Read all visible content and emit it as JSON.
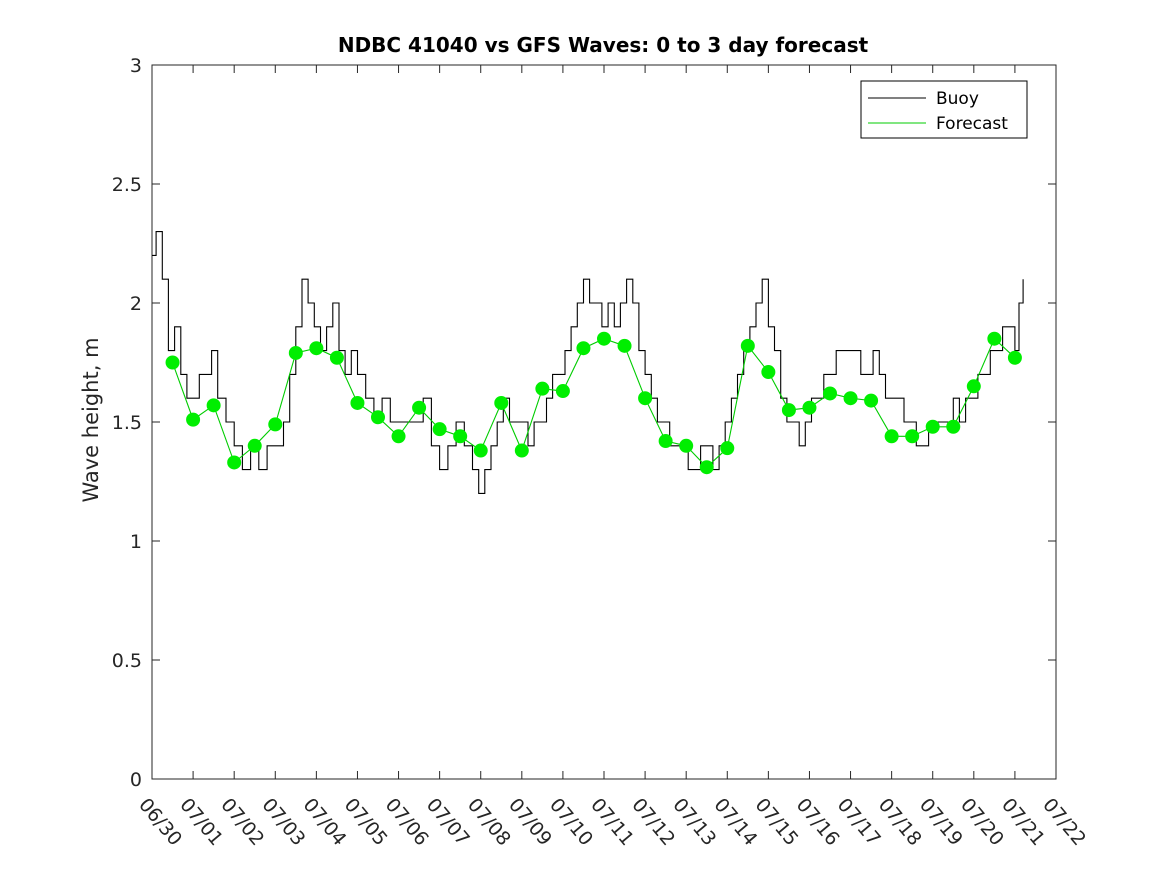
{
  "chart_data": {
    "type": "line",
    "title": "NDBC 41040 vs GFS Waves: 0 to 3 day forecast",
    "xlabel": "",
    "ylabel": "Wave height, m",
    "xlim": [
      "06/30",
      "07/22"
    ],
    "ylim": [
      0,
      3
    ],
    "x_tick_labels": [
      "06/30",
      "07/01",
      "07/02",
      "07/03",
      "07/04",
      "07/05",
      "07/06",
      "07/07",
      "07/08",
      "07/09",
      "07/10",
      "07/11",
      "07/12",
      "07/13",
      "07/14",
      "07/15",
      "07/16",
      "07/17",
      "07/18",
      "07/19",
      "07/20",
      "07/21",
      "07/22"
    ],
    "y_tick_labels": [
      "0",
      "0.5",
      "1",
      "1.5",
      "2",
      "2.5",
      "3"
    ],
    "y_ticks": [
      0,
      0.5,
      1,
      1.5,
      2,
      2.5,
      3
    ],
    "grid": false,
    "legend": {
      "placement": "top-right",
      "entries": [
        "Buoy",
        "Forecast"
      ]
    },
    "colors": {
      "buoy": "#000000",
      "forecast": "#00cc00",
      "markers": "#00ee00"
    },
    "series": [
      {
        "name": "Buoy",
        "x_days": [
          0,
          0.1,
          0.25,
          0.4,
          0.55,
          0.7,
          0.85,
          1.0,
          1.15,
          1.3,
          1.45,
          1.6,
          1.8,
          2.0,
          2.2,
          2.4,
          2.6,
          2.8,
          3.0,
          3.2,
          3.35,
          3.5,
          3.65,
          3.8,
          3.95,
          4.1,
          4.25,
          4.4,
          4.55,
          4.7,
          4.85,
          5.0,
          5.2,
          5.4,
          5.6,
          5.8,
          6.0,
          6.2,
          6.4,
          6.6,
          6.8,
          7.0,
          7.2,
          7.4,
          7.6,
          7.8,
          7.95,
          8.1,
          8.25,
          8.4,
          8.55,
          8.7,
          8.85,
          9.0,
          9.15,
          9.3,
          9.45,
          9.6,
          9.75,
          9.9,
          10.05,
          10.2,
          10.35,
          10.5,
          10.65,
          10.8,
          10.95,
          11.1,
          11.25,
          11.4,
          11.55,
          11.7,
          11.85,
          12.0,
          12.15,
          12.3,
          12.45,
          12.6,
          12.75,
          12.9,
          13.05,
          13.2,
          13.35,
          13.5,
          13.65,
          13.8,
          13.95,
          14.1,
          14.25,
          14.4,
          14.55,
          14.7,
          14.85,
          15.0,
          15.15,
          15.3,
          15.45,
          15.6,
          15.75,
          15.9,
          16.05,
          16.2,
          16.35,
          16.5,
          16.65,
          16.8,
          16.95,
          17.1,
          17.25,
          17.4,
          17.55,
          17.7,
          17.85,
          18.0,
          18.15,
          18.3,
          18.45,
          18.6,
          18.75,
          18.9,
          19.05,
          19.2,
          19.35,
          19.5,
          19.65,
          19.8,
          19.95,
          20.1,
          20.25,
          20.4,
          20.55,
          20.7,
          20.85,
          21.0,
          21.1,
          21.2
        ],
        "values": [
          2.2,
          2.3,
          2.1,
          1.8,
          1.9,
          1.7,
          1.6,
          1.6,
          1.7,
          1.7,
          1.8,
          1.6,
          1.5,
          1.4,
          1.3,
          1.4,
          1.3,
          1.4,
          1.4,
          1.5,
          1.7,
          1.9,
          2.1,
          2.0,
          1.9,
          1.8,
          1.9,
          2.0,
          1.8,
          1.7,
          1.8,
          1.7,
          1.6,
          1.5,
          1.6,
          1.5,
          1.5,
          1.5,
          1.5,
          1.6,
          1.4,
          1.3,
          1.4,
          1.5,
          1.4,
          1.3,
          1.2,
          1.3,
          1.4,
          1.5,
          1.6,
          1.5,
          1.5,
          1.5,
          1.4,
          1.5,
          1.5,
          1.6,
          1.7,
          1.7,
          1.8,
          1.9,
          2.0,
          2.1,
          2.0,
          2.0,
          1.9,
          2.0,
          1.9,
          2.0,
          2.1,
          2.0,
          1.8,
          1.7,
          1.6,
          1.5,
          1.5,
          1.4,
          1.4,
          1.4,
          1.3,
          1.3,
          1.4,
          1.4,
          1.3,
          1.4,
          1.5,
          1.6,
          1.7,
          1.8,
          1.9,
          2.0,
          2.1,
          1.9,
          1.8,
          1.6,
          1.5,
          1.5,
          1.4,
          1.5,
          1.6,
          1.6,
          1.7,
          1.7,
          1.8,
          1.8,
          1.8,
          1.8,
          1.7,
          1.7,
          1.8,
          1.7,
          1.6,
          1.6,
          1.6,
          1.5,
          1.5,
          1.4,
          1.4,
          1.5,
          1.5,
          1.5,
          1.5,
          1.6,
          1.5,
          1.6,
          1.6,
          1.7,
          1.7,
          1.8,
          1.8,
          1.9,
          1.9,
          1.8,
          2.0,
          2.1
        ]
      },
      {
        "name": "Forecast",
        "x_days": [
          0.5,
          1.0,
          1.5,
          2.0,
          2.5,
          3.0,
          3.5,
          4.0,
          4.5,
          5.0,
          5.5,
          6.0,
          6.5,
          7.0,
          7.5,
          8.0,
          8.5,
          9.0,
          9.5,
          10.0,
          10.5,
          11.0,
          11.5,
          12.0,
          12.5,
          13.0,
          13.5,
          14.0,
          14.5,
          15.0,
          15.5,
          16.0,
          16.5,
          17.0,
          17.5,
          18.0,
          18.5,
          19.0,
          19.5,
          20.0,
          20.5,
          21.0
        ],
        "values": [
          1.75,
          1.51,
          1.57,
          1.33,
          1.4,
          1.49,
          1.79,
          1.81,
          1.77,
          1.58,
          1.52,
          1.44,
          1.56,
          1.47,
          1.44,
          1.38,
          1.58,
          1.38,
          1.64,
          1.63,
          1.81,
          1.85,
          1.82,
          1.6,
          1.42,
          1.4,
          1.31,
          1.39,
          1.82,
          1.71,
          1.55,
          1.56,
          1.62,
          1.6,
          1.59,
          1.44,
          1.44,
          1.48,
          1.48,
          1.65,
          1.85,
          1.77
        ]
      }
    ]
  }
}
